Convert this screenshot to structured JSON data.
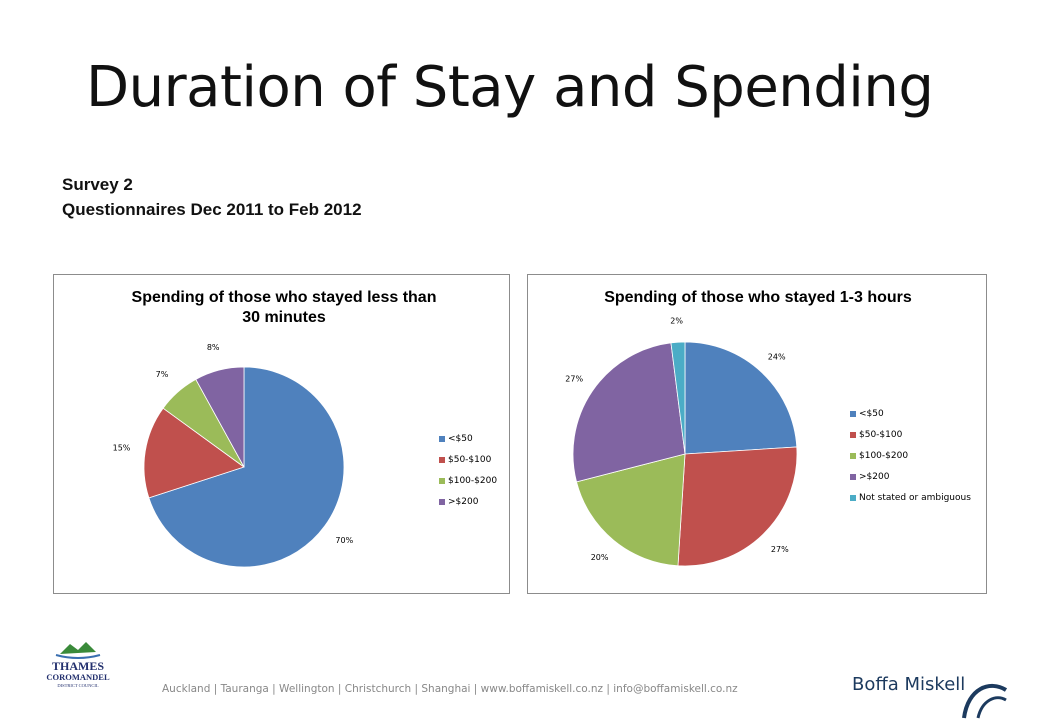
{
  "slide": {
    "title": "Duration of Stay and Spending",
    "subtitle_line1": "Survey 2",
    "subtitle_line2": "Questionnaires Dec 2011 to Feb 2012"
  },
  "footer": {
    "text": "Auckland | Tauranga | Wellington | Christchurch | Shanghai | www.boffamiskell.co.nz | info@boffamiskell.co.nz",
    "brand": "Boffa Miskell"
  },
  "council_logo": {
    "line1": "THAMES",
    "line2": "COROMANDEL",
    "line3": "DISTRICT COUNCIL"
  },
  "chart_data": [
    {
      "type": "pie",
      "title": "Spending of those who stayed less than 30 minutes",
      "title_line1": "Spending of those who stayed less than",
      "title_line2": "30 minutes",
      "categories": [
        "<$50",
        "$50-$100",
        "$100-$200",
        ">$200"
      ],
      "values": [
        70,
        15,
        7,
        8
      ],
      "data_labels": [
        "70%",
        "15%",
        "7%",
        "8%"
      ],
      "colors": [
        "#4f81bd",
        "#c0504d",
        "#9bbb59",
        "#8064a2"
      ],
      "legend_position": "right"
    },
    {
      "type": "pie",
      "title": "Spending of those who stayed 1-3 hours",
      "categories": [
        "<$50",
        "$50-$100",
        "$100-$200",
        ">$200",
        "Not stated or ambiguous"
      ],
      "values": [
        24,
        27,
        20,
        27,
        2
      ],
      "data_labels": [
        "24%",
        "27%",
        "20%",
        "27%",
        "2%"
      ],
      "colors": [
        "#4f81bd",
        "#c0504d",
        "#9bbb59",
        "#8064a2",
        "#4bacc6"
      ],
      "legend_position": "right"
    }
  ]
}
